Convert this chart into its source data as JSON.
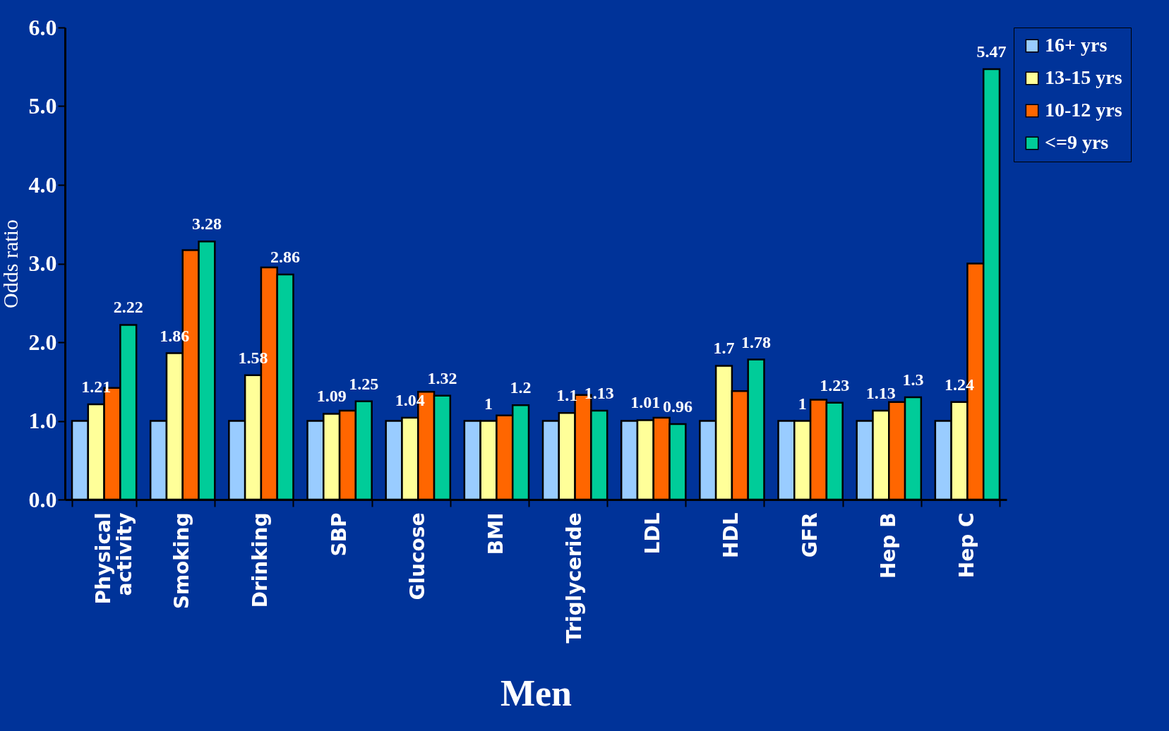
{
  "chart_data": {
    "type": "bar",
    "xlabel": "Men",
    "ylabel": "Odds ratio",
    "categories": [
      "Physical activity",
      "Smoking",
      "Drinking",
      "SBP",
      "Glucose",
      "BMI",
      "Triglyceride",
      "LDL",
      "HDL",
      "GFR",
      "Hep B",
      "Hep C"
    ],
    "series": [
      {
        "name": "16+ yrs",
        "color": "#99ccff",
        "values": [
          1,
          1,
          1,
          1,
          1,
          1,
          1,
          1,
          1,
          1,
          1,
          1
        ]
      },
      {
        "name": "13-15 yrs",
        "color": "#ffff99",
        "values": [
          1.21,
          1.86,
          1.58,
          1.09,
          1.04,
          1,
          1.1,
          1.01,
          1.7,
          1,
          1.13,
          1.24
        ],
        "value_labels": [
          "1.21",
          "1.86",
          "1.58",
          "1.09",
          "1.04",
          "1",
          "1.1",
          "1.01",
          "1.7",
          "1",
          "1.13",
          "1.24"
        ]
      },
      {
        "name": "10-12 yrs",
        "color": "#ff6600",
        "values": [
          1.42,
          3.17,
          2.95,
          1.13,
          1.37,
          1.07,
          1.33,
          1.04,
          1.38,
          1.27,
          1.24,
          3.0
        ]
      },
      {
        "name": "<=9 yrs",
        "color": "#00cc99",
        "values": [
          2.22,
          3.28,
          2.86,
          1.25,
          1.32,
          1.2,
          1.13,
          0.96,
          1.78,
          1.23,
          1.3,
          5.47
        ],
        "value_labels": [
          "2.22",
          "3.28",
          "2.86",
          "1.25",
          "1.32",
          "1.2",
          "1.13",
          "0.96",
          "1.78",
          "1.23",
          "1.3",
          "5.47"
        ]
      }
    ],
    "ylim": [
      0,
      6
    ],
    "yticks": [
      {
        "value": 0,
        "label": "0.0"
      },
      {
        "value": 1,
        "label": "1.0"
      },
      {
        "value": 2,
        "label": "2.0"
      },
      {
        "value": 3,
        "label": "3.0"
      },
      {
        "value": 4,
        "label": "4.0"
      },
      {
        "value": 5,
        "label": "5.0"
      },
      {
        "value": 6,
        "label": "6.0"
      }
    ],
    "grid": false,
    "legend": "right"
  }
}
